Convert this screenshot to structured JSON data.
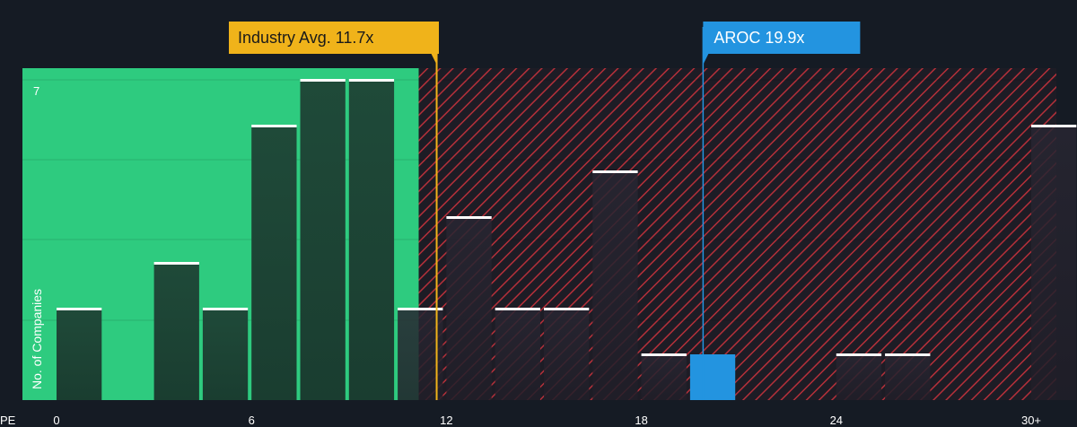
{
  "chart_data": {
    "type": "bar",
    "x_axis_label": "PE",
    "y_axis_label": "No. of Companies",
    "x_ticks": [
      "0",
      "6",
      "12",
      "18",
      "24",
      "30+"
    ],
    "y_ticks": [
      "7"
    ],
    "bin_starts": [
      0,
      3,
      4.5,
      6,
      7.5,
      9,
      10.5,
      12,
      13.5,
      15,
      16.5,
      18,
      19.5,
      24,
      25.5,
      30
    ],
    "bin_width": 1.5,
    "values": [
      2,
      3,
      2,
      6,
      7,
      7,
      2,
      4,
      2,
      2,
      5,
      1,
      1,
      1,
      1,
      6
    ],
    "highlight_bin_start": 19.5,
    "ylim": [
      0,
      7
    ],
    "industry_avg": {
      "label": "Industry Avg. 11.7x",
      "value": 11.7
    },
    "company": {
      "label": "AROC 19.9x",
      "value": 19.9
    },
    "colors": {
      "background": "#151b24",
      "below_avg_zone": "#2ecb7f",
      "bar_fill": "#1e4d3b",
      "above_avg_hatch": "#b5303a",
      "industry_callout": "#f0b31a",
      "company_callout": "#2394e0",
      "bar_top": "#ffffff"
    }
  }
}
